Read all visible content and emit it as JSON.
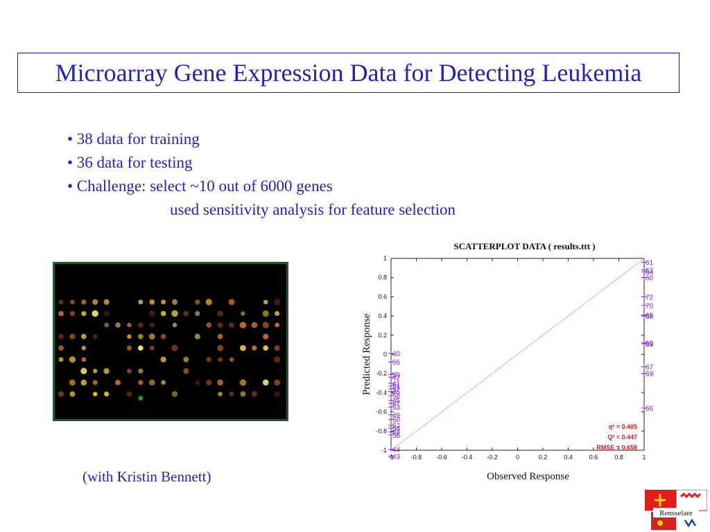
{
  "slide": {
    "title": "Microarray Gene Expression Data for Detecting Leukemia",
    "bullets": [
      "• 38 data for training",
      "• 36 data for testing",
      "• Challenge: select ~10 out of 6000 genes",
      "used sensitivity analysis for feature selection"
    ],
    "caption": "(with Kristin Bennett)",
    "logo_text": "Rensselaer"
  },
  "colors": {
    "text_blue": "#2323b8",
    "plot_series": "#7a22d8",
    "stats_red": "#d21818",
    "diagonal": "#f2a8a8",
    "frame_green": "#1b5e35"
  },
  "chart_data": {
    "type": "scatter",
    "title": "SCATTERPLOT DATA ( results.ttt )",
    "xlabel": "Observed Response",
    "ylabel": "Predicted Response",
    "xlim": [
      -1,
      1
    ],
    "ylim": [
      -1,
      1
    ],
    "xticks": [
      "-1",
      "-0.8",
      "-0.6",
      "-0.4",
      "-0.2",
      "0",
      "0.2",
      "0.4",
      "0.6",
      "0.8",
      "1"
    ],
    "yticks": [
      "1",
      "0.8",
      "0.6",
      "0.4",
      "0.2",
      "0",
      "-0.2",
      "-0.4",
      "-0.6",
      "-0.8",
      "-1"
    ],
    "grid": false,
    "reference_line": "y = x",
    "points": [
      {
        "label": "61",
        "x": 1,
        "y": 0.96
      },
      {
        "label": "62",
        "x": 1,
        "y": 0.88
      },
      {
        "label": "64",
        "x": 1,
        "y": 0.86
      },
      {
        "label": "60",
        "x": 1,
        "y": 0.8
      },
      {
        "label": "72",
        "x": 1,
        "y": 0.6
      },
      {
        "label": "70",
        "x": 1,
        "y": 0.51
      },
      {
        "label": "65",
        "x": 1,
        "y": 0.41
      },
      {
        "label": "68",
        "x": 1,
        "y": 0.4
      },
      {
        "label": "59",
        "x": 1,
        "y": 0.12
      },
      {
        "label": "69",
        "x": 1,
        "y": 0.11
      },
      {
        "label": "67",
        "x": 1,
        "y": -0.13
      },
      {
        "label": "69",
        "x": 1,
        "y": -0.2
      },
      {
        "label": "66",
        "x": 1,
        "y": -0.56
      },
      {
        "label": "40",
        "x": -1,
        "y": 0.01
      },
      {
        "label": "55",
        "x": -1,
        "y": -0.08
      },
      {
        "label": "39",
        "x": -1,
        "y": -0.21
      },
      {
        "label": "42",
        "x": -1,
        "y": -0.24
      },
      {
        "label": "41",
        "x": -1,
        "y": -0.3
      },
      {
        "label": "51",
        "x": -1,
        "y": -0.33
      },
      {
        "label": "57",
        "x": -1,
        "y": -0.36
      },
      {
        "label": "46",
        "x": -1,
        "y": -0.39
      },
      {
        "label": "58",
        "x": -1,
        "y": -0.43
      },
      {
        "label": "45",
        "x": -1,
        "y": -0.48
      },
      {
        "label": "47",
        "x": -1,
        "y": -0.51
      },
      {
        "label": "53",
        "x": -1,
        "y": -0.55
      },
      {
        "label": "49",
        "x": -1,
        "y": -0.63
      },
      {
        "label": "50",
        "x": -1,
        "y": -0.68
      },
      {
        "label": "52",
        "x": -1,
        "y": -0.74
      },
      {
        "label": "54",
        "x": -1,
        "y": -0.77
      },
      {
        "label": "48",
        "x": -1,
        "y": -0.81
      },
      {
        "label": "56",
        "x": -1,
        "y": -0.84
      },
      {
        "label": "44",
        "x": -1,
        "y": -0.99
      },
      {
        "label": "43",
        "x": -1,
        "y": -1.06
      }
    ],
    "stats": [
      {
        "label": "q² = 0.405"
      },
      {
        "label": "Q² = 0.447"
      },
      {
        "label": "RMSE = 0.658"
      }
    ]
  }
}
